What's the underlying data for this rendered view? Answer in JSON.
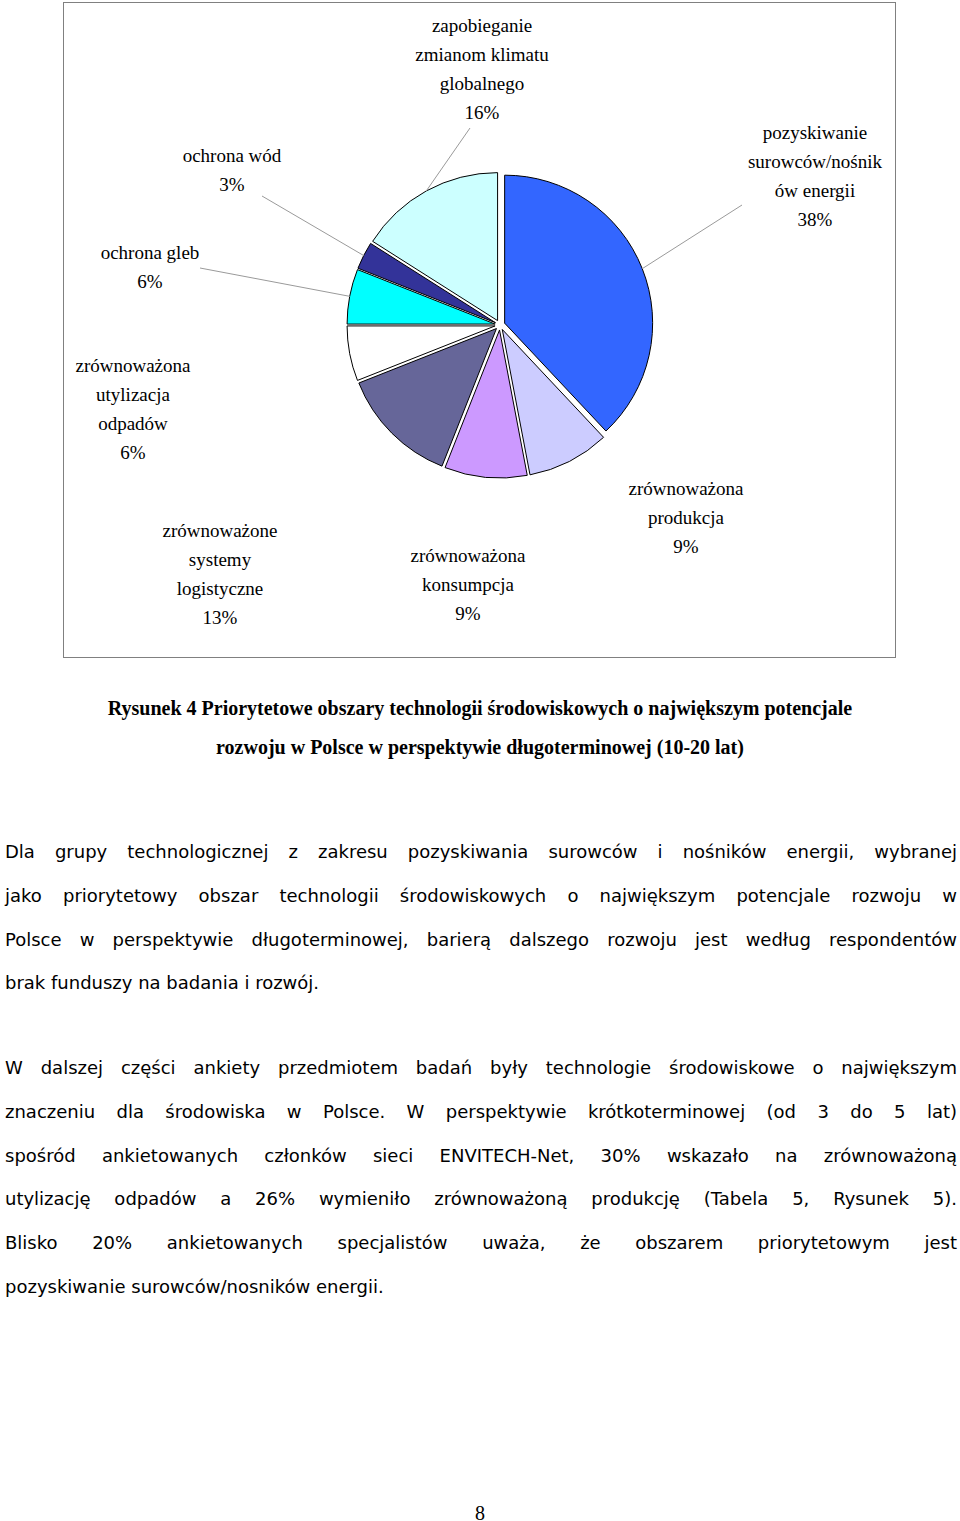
{
  "chart_data": {
    "type": "pie",
    "categories": [
      "pozyskiwanie\nsurowców/nośnik\nów energii",
      "zrównoważona\nprodukcja",
      "zrównoważona\nkonsumpcja",
      "zrównoważone\nsystemy\nlogistyczne",
      "zrównoważona\nutylizacja\nodpadów",
      "ochrona gleb",
      "ochrona wód",
      "zapobieganie\nzmianom klimatu\nglobalnego"
    ],
    "values": [
      38,
      9,
      9,
      13,
      6,
      6,
      3,
      16
    ],
    "value_labels": [
      "38%",
      "9%",
      "9%",
      "13%",
      "6%",
      "6%",
      "3%",
      "16%"
    ],
    "colors": [
      "#3366ff",
      "#ccccff",
      "#cc99ff",
      "#666699",
      "#ffffff",
      "#00ffff",
      "#333399",
      "#ccffff"
    ],
    "data_labels": true
  },
  "caption": [
    "Rysunek 4 Priorytetowe obszary technologii środowiskowych o największym potencjale",
    "rozwoju w Polsce w perspektywie długoterminowej (10-20 lat)"
  ],
  "paragraphs": [
    [
      "Dla grupy technologicznej z zakresu pozyskiwania surowców i nośników energii, wybranej",
      "jako priorytetowy obszar technologii środowiskowych o największym potencjale rozwoju w",
      "Polsce w perspektywie długoterminowej, barierą dalszego rozwoju jest według respondentów",
      "brak funduszy na badania i rozwój."
    ],
    [
      "W dalszej części ankiety przedmiotem badań były technologie środowiskowe o największym",
      "znaczeniu dla środowiska w Polsce. W perspektywie krótkoterminowej (od 3 do 5 lat)",
      "spośród ankietowanych członków sieci ENVITECH-Net, 30% wskazało na zrównoważoną",
      "utylizację odpadów a 26% wymieniło zrównoważoną produkcję (Tabela 5, Rysunek 5).",
      "Blisko 20% ankietowanych specjalistów uważa, że obszarem priorytetowym jest",
      "pozyskiwanie surowców/nosników energii."
    ]
  ],
  "page_number": "8"
}
